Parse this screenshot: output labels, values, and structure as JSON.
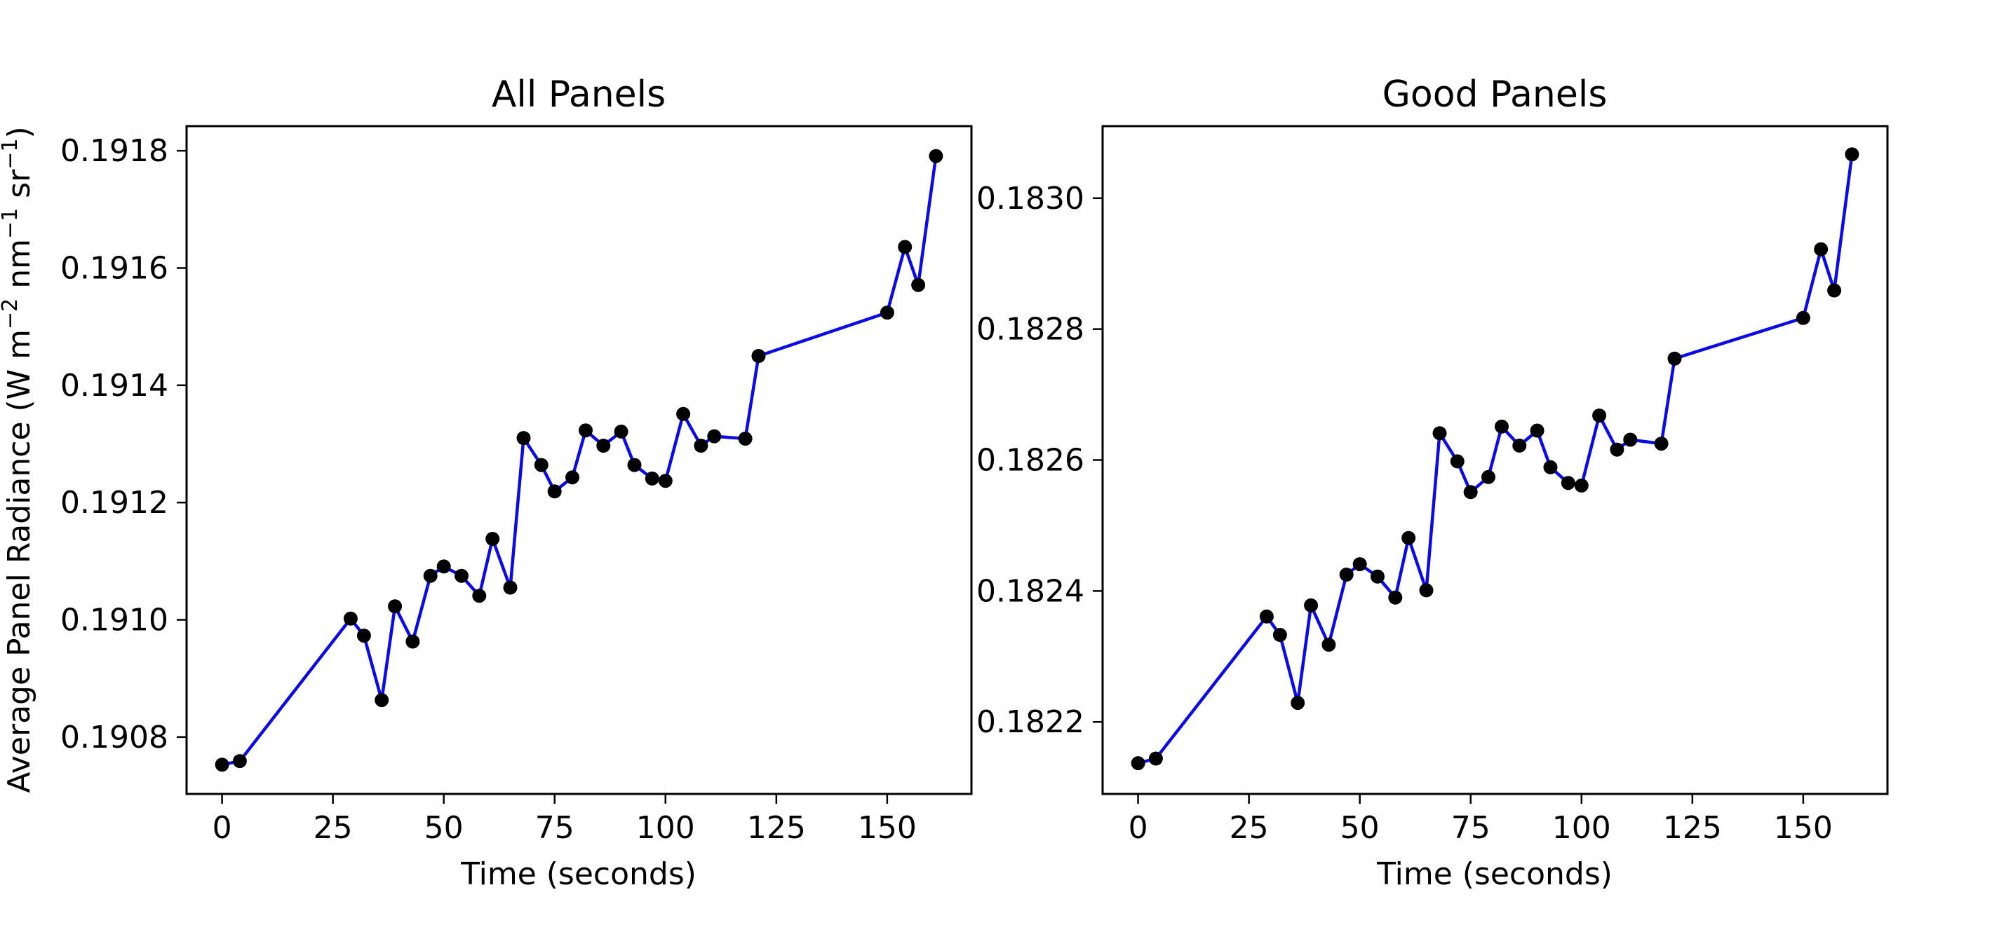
{
  "colors": {
    "line": "#0b0be8",
    "marker": "#000000",
    "axes": "#000000",
    "background": "#ffffff"
  },
  "chart_data": [
    {
      "type": "line",
      "title": "All Panels",
      "xlabel": "Time (seconds)",
      "ylabel": "Average Panel Radiance (W m−2 nm−1 sr−1)",
      "ylabel_parts": {
        "base": "Average Panel Radiance (W m",
        "sup1": "−2",
        "mid1": " nm",
        "sup2": "−1",
        "mid2": " sr",
        "sup3": "−1",
        "end": ")"
      },
      "xlim": [
        -8,
        169
      ],
      "ylim": [
        0.190703,
        0.191842
      ],
      "xticks": [
        0,
        25,
        50,
        75,
        100,
        125,
        150
      ],
      "xtick_labels": [
        "0",
        "25",
        "50",
        "75",
        "100",
        "125",
        "150"
      ],
      "yticks": [
        0.1908,
        0.191,
        0.1912,
        0.1914,
        0.1916,
        0.1918
      ],
      "ytick_labels": [
        "0.1908",
        "0.1910",
        "0.1912",
        "0.1914",
        "0.1916",
        "0.1918"
      ],
      "legend": "none",
      "grid": false,
      "marker": "circle",
      "x": [
        0,
        4,
        29,
        32,
        36,
        39,
        43,
        47,
        50,
        54,
        58,
        61,
        65,
        68,
        72,
        75,
        79,
        82,
        86,
        90,
        93,
        97,
        100,
        104,
        108,
        111,
        118,
        121,
        150,
        154,
        157,
        161
      ],
      "y": [
        0.190753,
        0.190759,
        0.191002,
        0.190973,
        0.190863,
        0.191023,
        0.190963,
        0.191075,
        0.191091,
        0.191075,
        0.191041,
        0.191138,
        0.191055,
        0.19131,
        0.191264,
        0.191219,
        0.191243,
        0.191323,
        0.191297,
        0.191321,
        0.191264,
        0.191241,
        0.191237,
        0.191351,
        0.191297,
        0.191313,
        0.191309,
        0.19145,
        0.191524,
        0.191636,
        0.191571,
        0.191791
      ]
    },
    {
      "type": "line",
      "title": "Good Panels",
      "xlabel": "Time (seconds)",
      "ylabel": "",
      "xlim": [
        -8,
        169
      ],
      "ylim": [
        0.18209,
        0.18311
      ],
      "xticks": [
        0,
        25,
        50,
        75,
        100,
        125,
        150
      ],
      "xtick_labels": [
        "0",
        "25",
        "50",
        "75",
        "100",
        "125",
        "150"
      ],
      "yticks": [
        0.1822,
        0.1824,
        0.1826,
        0.1828,
        0.183
      ],
      "ytick_labels": [
        "0.1822",
        "0.1824",
        "0.1826",
        "0.1828",
        "0.1830"
      ],
      "legend": "none",
      "grid": false,
      "marker": "circle",
      "x": [
        0,
        4,
        29,
        32,
        36,
        39,
        43,
        47,
        50,
        54,
        58,
        61,
        65,
        68,
        72,
        75,
        79,
        82,
        86,
        90,
        93,
        97,
        100,
        104,
        108,
        111,
        118,
        121,
        150,
        154,
        157,
        161
      ],
      "y": [
        0.182137,
        0.182144,
        0.182361,
        0.182333,
        0.182229,
        0.182378,
        0.182318,
        0.182425,
        0.182441,
        0.182422,
        0.18239,
        0.182481,
        0.182401,
        0.182641,
        0.182598,
        0.182551,
        0.182574,
        0.182651,
        0.182622,
        0.182645,
        0.182589,
        0.182565,
        0.182561,
        0.182668,
        0.182616,
        0.182631,
        0.182625,
        0.182755,
        0.182817,
        0.182922,
        0.182859,
        0.183067
      ]
    }
  ]
}
